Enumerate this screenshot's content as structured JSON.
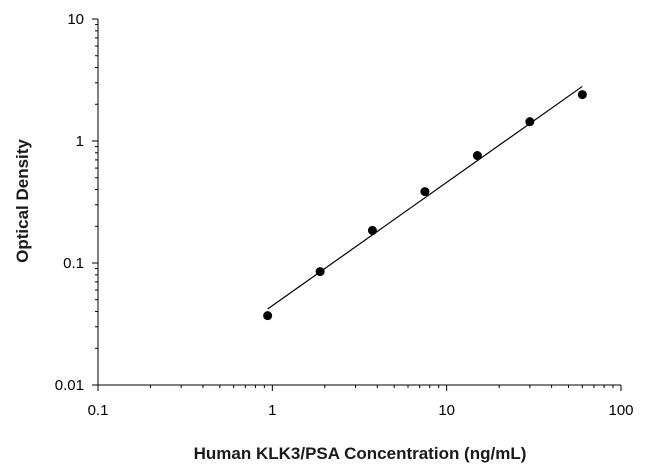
{
  "chart_data": {
    "type": "scatter",
    "title": "",
    "xlabel": "Human KLK3/PSA Concentration (ng/mL)",
    "ylabel": "Optical Density",
    "x_scale": "log",
    "y_scale": "log",
    "xlim": [
      0.1,
      100
    ],
    "ylim": [
      0.01,
      10
    ],
    "x_ticks": [
      0.1,
      1,
      10,
      100
    ],
    "x_tick_labels": [
      "0.1",
      "1",
      "10",
      "100"
    ],
    "y_ticks": [
      0.01,
      0.1,
      1,
      10
    ],
    "y_tick_labels": [
      "0.01",
      "0.1",
      "1",
      "10"
    ],
    "grid": false,
    "legend": "none",
    "series": [
      {
        "x": [
          0.94,
          1.88,
          3.75,
          7.5,
          15,
          30,
          60
        ],
        "y": [
          0.037,
          0.085,
          0.185,
          0.385,
          0.76,
          1.44,
          2.4
        ]
      }
    ],
    "fit_line": {
      "x": [
        0.94,
        60
      ],
      "y": [
        0.042,
        2.8
      ]
    },
    "colors": {
      "points": "#000000",
      "line": "#000000",
      "axes": "#000000"
    }
  }
}
